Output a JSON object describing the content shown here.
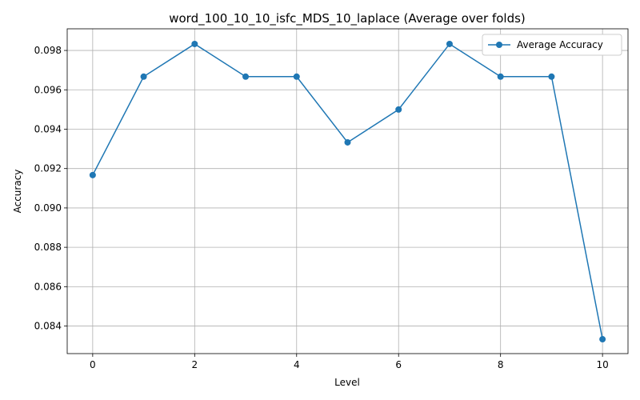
{
  "chart_data": {
    "type": "line",
    "title": "word_100_10_10_isfc_MDS_10_laplace (Average over folds)",
    "xlabel": "Level",
    "ylabel": "Accuracy",
    "xlim": [
      -0.5,
      10.5
    ],
    "ylim": [
      0.0826,
      0.0991
    ],
    "xticks": [
      0,
      2,
      4,
      6,
      8,
      10
    ],
    "yticks": [
      0.084,
      0.086,
      0.088,
      0.09,
      0.092,
      0.094,
      0.096,
      0.098
    ],
    "grid": true,
    "legend_position": "top-right",
    "series": [
      {
        "name": "Average Accuracy",
        "color": "#1f77b4",
        "marker": "circle",
        "x": [
          0,
          1,
          2,
          3,
          4,
          5,
          6,
          7,
          8,
          9,
          10
        ],
        "y": [
          0.09167,
          0.09667,
          0.09833,
          0.09667,
          0.09667,
          0.09333,
          0.095,
          0.09833,
          0.09667,
          0.09667,
          0.08333
        ]
      }
    ]
  }
}
